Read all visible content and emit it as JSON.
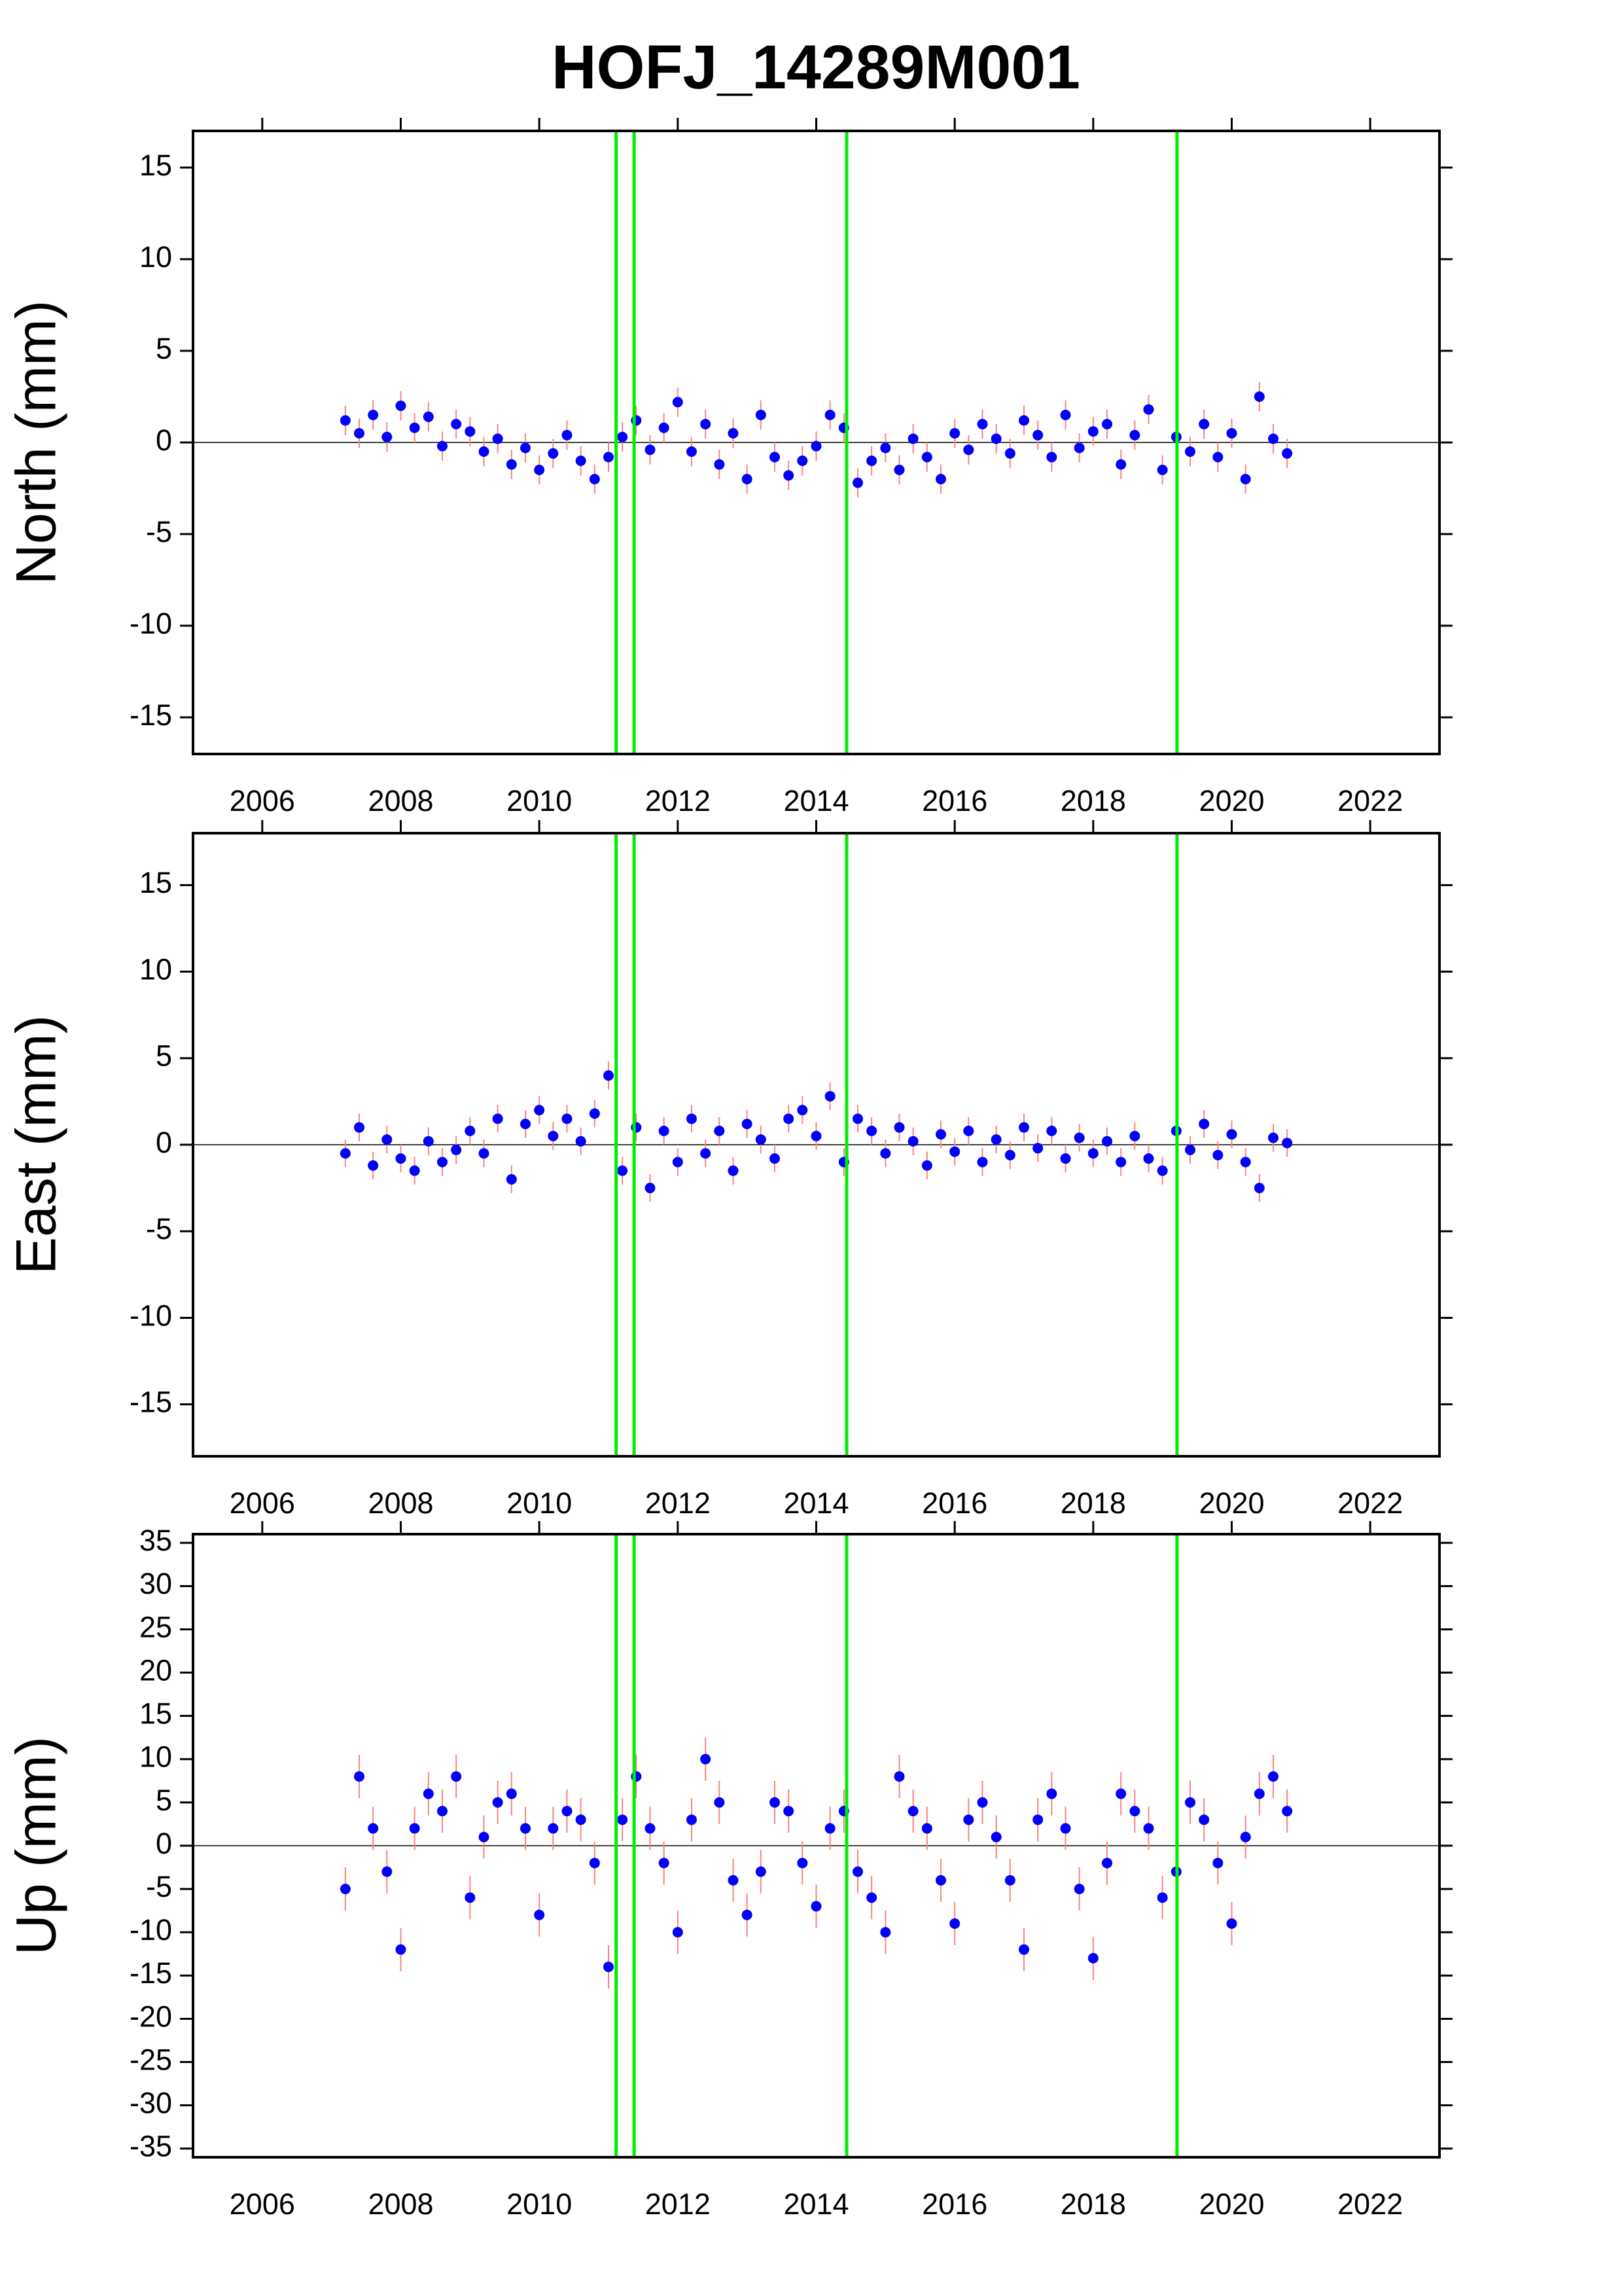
{
  "chart_data": [
    {
      "type": "scatter",
      "title": "HOFJ_14289M001",
      "ylabel": "North (mm)",
      "x": [
        2007.2,
        2007.4,
        2007.6,
        2007.8,
        2008,
        2008.2,
        2008.4,
        2008.6,
        2008.8,
        2009,
        2009.2,
        2009.4,
        2009.6,
        2009.8,
        2010,
        2010.2,
        2010.4,
        2010.6,
        2010.8,
        2011,
        2011.2,
        2011.4,
        2011.6,
        2011.8,
        2012,
        2012.2,
        2012.4,
        2012.6,
        2012.8,
        2013,
        2013.2,
        2013.4,
        2013.6,
        2013.8,
        2014,
        2014.2,
        2014.4,
        2014.6,
        2014.8,
        2015,
        2015.2,
        2015.4,
        2015.6,
        2015.8,
        2016,
        2016.2,
        2016.4,
        2016.6,
        2016.8,
        2017,
        2017.2,
        2017.4,
        2017.6,
        2017.8,
        2018,
        2018.2,
        2018.4,
        2018.6,
        2018.8,
        2019,
        2019.2,
        2019.4,
        2019.6,
        2019.8,
        2020,
        2020.2,
        2020.4,
        2020.6,
        2020.8
      ],
      "values": [
        1.2,
        0.5,
        1.5,
        0.3,
        2.0,
        0.8,
        1.4,
        -0.2,
        1.0,
        0.6,
        -0.5,
        0.2,
        -1.2,
        -0.3,
        -1.5,
        -0.6,
        0.4,
        -1.0,
        -2.0,
        -0.8,
        0.3,
        1.2,
        -0.4,
        0.8,
        2.2,
        -0.5,
        1.0,
        -1.2,
        0.5,
        -2.0,
        1.5,
        -0.8,
        -1.8,
        -1.0,
        -0.2,
        1.5,
        0.8,
        -2.2,
        -1.0,
        -0.3,
        -1.5,
        0.2,
        -0.8,
        -2.0,
        0.5,
        -0.4,
        1.0,
        0.2,
        -0.6,
        1.2,
        0.4,
        -0.8,
        1.5,
        -0.3,
        0.6,
        1.0,
        -1.2,
        0.4,
        1.8,
        -1.5,
        0.3,
        -0.5,
        1.0,
        -0.8,
        0.5,
        -2.0,
        2.5,
        0.2,
        -0.6
      ],
      "error": 0.8,
      "color": "#0000ff",
      "error_color": "#ff8080",
      "events": [
        2011.11,
        2011.37,
        2014.44,
        2019.21
      ],
      "event_color": "#00ee00",
      "xlim": [
        2005,
        2023
      ],
      "xticks": [
        2006,
        2008,
        2010,
        2012,
        2014,
        2016,
        2018,
        2020,
        2022
      ],
      "ylim": [
        -17,
        17
      ],
      "yticks": [
        -15,
        -10,
        -5,
        0,
        5,
        10,
        15
      ]
    },
    {
      "type": "scatter",
      "ylabel": "East (mm)",
      "x": [
        2007.2,
        2007.4,
        2007.6,
        2007.8,
        2008,
        2008.2,
        2008.4,
        2008.6,
        2008.8,
        2009,
        2009.2,
        2009.4,
        2009.6,
        2009.8,
        2010,
        2010.2,
        2010.4,
        2010.6,
        2010.8,
        2011,
        2011.2,
        2011.4,
        2011.6,
        2011.8,
        2012,
        2012.2,
        2012.4,
        2012.6,
        2012.8,
        2013,
        2013.2,
        2013.4,
        2013.6,
        2013.8,
        2014,
        2014.2,
        2014.4,
        2014.6,
        2014.8,
        2015,
        2015.2,
        2015.4,
        2015.6,
        2015.8,
        2016,
        2016.2,
        2016.4,
        2016.6,
        2016.8,
        2017,
        2017.2,
        2017.4,
        2017.6,
        2017.8,
        2018,
        2018.2,
        2018.4,
        2018.6,
        2018.8,
        2019,
        2019.2,
        2019.4,
        2019.6,
        2019.8,
        2020,
        2020.2,
        2020.4,
        2020.6,
        2020.8
      ],
      "values": [
        -0.5,
        1.0,
        -1.2,
        0.3,
        -0.8,
        -1.5,
        0.2,
        -1.0,
        -0.3,
        0.8,
        -0.5,
        1.5,
        -2.0,
        1.2,
        2.0,
        0.5,
        1.5,
        0.2,
        1.8,
        4.0,
        -1.5,
        1.0,
        -2.5,
        0.8,
        -1.0,
        1.5,
        -0.5,
        0.8,
        -1.5,
        1.2,
        0.3,
        -0.8,
        1.5,
        2.0,
        0.5,
        2.8,
        -1.0,
        1.5,
        0.8,
        -0.5,
        1.0,
        0.2,
        -1.2,
        0.6,
        -0.4,
        0.8,
        -1.0,
        0.3,
        -0.6,
        1.0,
        -0.2,
        0.8,
        -0.8,
        0.4,
        -0.5,
        0.2,
        -1.0,
        0.5,
        -0.8,
        -1.5,
        0.8,
        -0.3,
        1.2,
        -0.6,
        0.6,
        -1.0,
        -2.5,
        0.4,
        0.1
      ],
      "error": 0.8,
      "color": "#0000ff",
      "error_color": "#ff8080",
      "events": [
        2011.11,
        2011.37,
        2014.44,
        2019.21
      ],
      "event_color": "#00ee00",
      "xlim": [
        2005,
        2023
      ],
      "xticks": [
        2006,
        2008,
        2010,
        2012,
        2014,
        2016,
        2018,
        2020,
        2022
      ],
      "ylim": [
        -18,
        18
      ],
      "yticks": [
        -15,
        -10,
        -5,
        0,
        5,
        10,
        15
      ]
    },
    {
      "type": "scatter",
      "ylabel": "Up (mm)",
      "x": [
        2007.2,
        2007.4,
        2007.6,
        2007.8,
        2008,
        2008.2,
        2008.4,
        2008.6,
        2008.8,
        2009,
        2009.2,
        2009.4,
        2009.6,
        2009.8,
        2010,
        2010.2,
        2010.4,
        2010.6,
        2010.8,
        2011,
        2011.2,
        2011.4,
        2011.6,
        2011.8,
        2012,
        2012.2,
        2012.4,
        2012.6,
        2012.8,
        2013,
        2013.2,
        2013.4,
        2013.6,
        2013.8,
        2014,
        2014.2,
        2014.4,
        2014.6,
        2014.8,
        2015,
        2015.2,
        2015.4,
        2015.6,
        2015.8,
        2016,
        2016.2,
        2016.4,
        2016.6,
        2016.8,
        2017,
        2017.2,
        2017.4,
        2017.6,
        2017.8,
        2018,
        2018.2,
        2018.4,
        2018.6,
        2018.8,
        2019,
        2019.2,
        2019.4,
        2019.6,
        2019.8,
        2020,
        2020.2,
        2020.4,
        2020.6,
        2020.8
      ],
      "values": [
        -5,
        8,
        2,
        -3,
        -12,
        2,
        6,
        4,
        8,
        -6,
        1,
        5,
        6,
        2,
        -8,
        2,
        4,
        3,
        -2,
        -14,
        3,
        8,
        2,
        -2,
        -10,
        3,
        10,
        5,
        -4,
        -8,
        -3,
        5,
        4,
        -2,
        -7,
        2,
        4,
        -3,
        -6,
        -10,
        8,
        4,
        2,
        -4,
        -9,
        3,
        5,
        1,
        -4,
        -12,
        3,
        6,
        2,
        -5,
        -13,
        -2,
        6,
        4,
        2,
        -6,
        -3,
        5,
        3,
        -2,
        -9,
        1,
        6,
        8,
        4
      ],
      "error": 2.5,
      "color": "#0000ff",
      "error_color": "#ff8080",
      "events": [
        2011.11,
        2011.37,
        2014.44,
        2019.21
      ],
      "event_color": "#00ee00",
      "xlim": [
        2005,
        2023
      ],
      "xticks": [
        2006,
        2008,
        2010,
        2012,
        2014,
        2016,
        2018,
        2020,
        2022
      ],
      "ylim": [
        -36,
        36
      ],
      "yticks": [
        -35,
        -30,
        -25,
        -20,
        -15,
        -10,
        -5,
        0,
        5,
        10,
        15,
        20,
        25,
        30,
        35
      ]
    }
  ]
}
